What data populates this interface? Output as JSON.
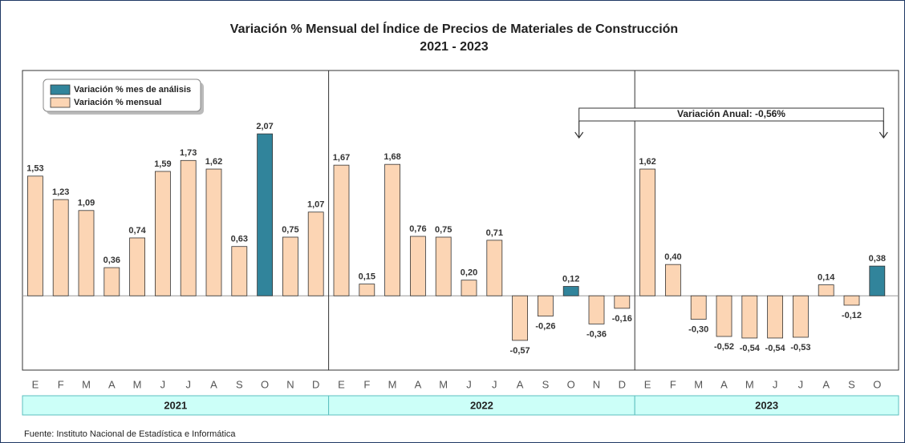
{
  "title": "Variación % Mensual del Índice de Precios de Materiales de Construcción",
  "subtitle": "2021 - 2023",
  "legend": [
    {
      "name": "Variación % mes de análisis",
      "color": "#31849b"
    },
    {
      "name": "Variación % mensual",
      "color": "#fcd5b4"
    }
  ],
  "annotation": "Variación Anual: -0,56%",
  "source": "Fuente: Instituto Nacional de Estadística e Informática",
  "chart_data": [
    {
      "type": "bar",
      "group": "2021",
      "categories": [
        "E",
        "F",
        "M",
        "A",
        "M",
        "J",
        "J",
        "A",
        "S",
        "O",
        "N",
        "D"
      ],
      "values": [
        1.53,
        1.23,
        1.09,
        0.36,
        0.74,
        1.59,
        1.73,
        1.62,
        0.63,
        2.07,
        0.75,
        1.07
      ],
      "value_labels": [
        "1,53",
        "1,23",
        "1,09",
        "0,36",
        "0,74",
        "1,59",
        "1,73",
        "1,62",
        "0,63",
        "2,07",
        "0,75",
        "1,07"
      ],
      "colors": [
        "#fcd5b4",
        "#fcd5b4",
        "#fcd5b4",
        "#fcd5b4",
        "#fcd5b4",
        "#fcd5b4",
        "#fcd5b4",
        "#fcd5b4",
        "#fcd5b4",
        "#31849b",
        "#fcd5b4",
        "#fcd5b4"
      ],
      "ylim": [
        -0.95,
        2.88
      ]
    },
    {
      "type": "bar",
      "group": "2022",
      "categories": [
        "E",
        "F",
        "M",
        "A",
        "M",
        "J",
        "J",
        "A",
        "S",
        "O",
        "N",
        "D"
      ],
      "values": [
        1.67,
        0.15,
        1.68,
        0.76,
        0.75,
        0.2,
        0.71,
        -0.57,
        -0.26,
        0.12,
        -0.36,
        -0.16
      ],
      "value_labels": [
        "1,67",
        "0,15",
        "1,68",
        "0,76",
        "0,75",
        "0,20",
        "0,71",
        "-0,57",
        "-0,26",
        "0,12",
        "-0,36",
        "-0,16"
      ],
      "colors": [
        "#fcd5b4",
        "#fcd5b4",
        "#fcd5b4",
        "#fcd5b4",
        "#fcd5b4",
        "#fcd5b4",
        "#fcd5b4",
        "#fcd5b4",
        "#fcd5b4",
        "#31849b",
        "#fcd5b4",
        "#fcd5b4"
      ],
      "ylim": [
        -0.95,
        2.88
      ]
    },
    {
      "type": "bar",
      "group": "2023",
      "categories": [
        "E",
        "F",
        "M",
        "A",
        "M",
        "J",
        "J",
        "A",
        "S",
        "O"
      ],
      "values": [
        1.62,
        0.4,
        -0.3,
        -0.52,
        -0.54,
        -0.54,
        -0.53,
        0.14,
        -0.12,
        0.38
      ],
      "value_labels": [
        "1,62",
        "0,40",
        "-0,30",
        "-0,52",
        "-0,54",
        "-0,54",
        "-0,53",
        "0,14",
        "-0,12",
        "0,38"
      ],
      "colors": [
        "#fcd5b4",
        "#fcd5b4",
        "#fcd5b4",
        "#fcd5b4",
        "#fcd5b4",
        "#fcd5b4",
        "#fcd5b4",
        "#fcd5b4",
        "#fcd5b4",
        "#31849b"
      ],
      "ylim": [
        -0.95,
        2.88
      ]
    }
  ]
}
